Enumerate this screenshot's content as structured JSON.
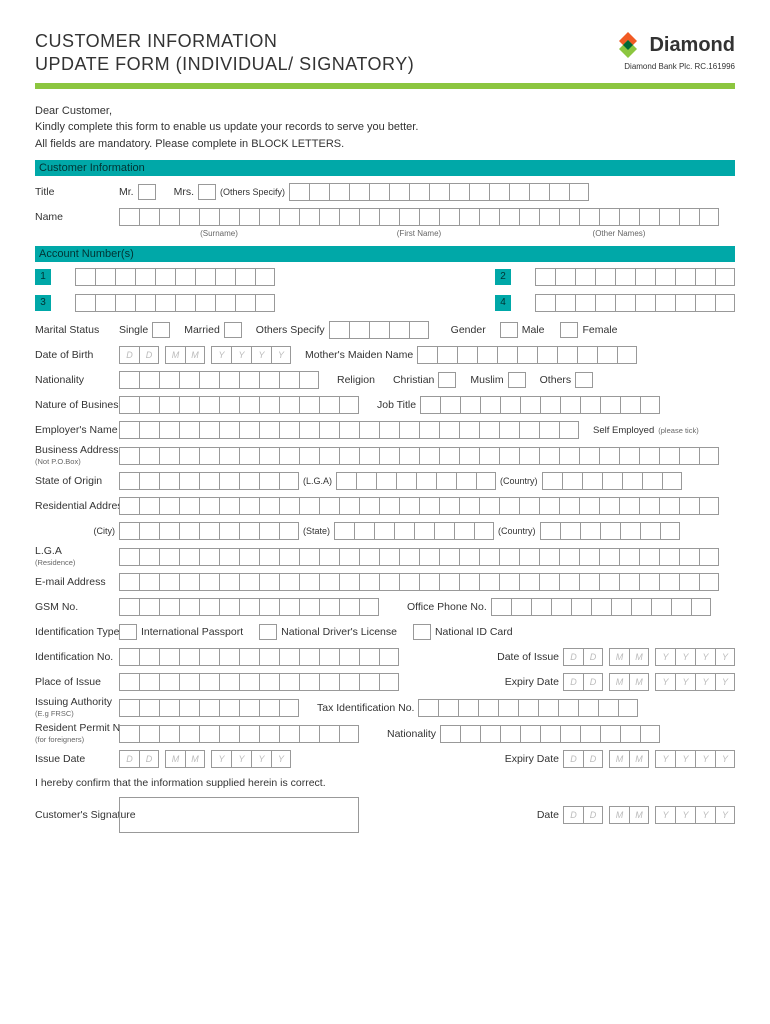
{
  "brand": {
    "name": "Diamond",
    "subtitle": "Diamond Bank Plc. RC.161996",
    "green": "#8cc63f",
    "teal": "#00a8a8",
    "orange": "#f15a24",
    "darkgreen": "#006837"
  },
  "title": {
    "line1": "CUSTOMER INFORMATION",
    "line2": "UPDATE FORM (INDIVIDUAL/ SIGNATORY)"
  },
  "intro": {
    "line1": "Dear Customer,",
    "line2": "Kindly complete this form to enable us update your records to serve you better.",
    "line3": "All fields are mandatory. Please complete in BLOCK LETTERS."
  },
  "sections": {
    "customer": "Customer Information",
    "accounts": "Account Number(s)"
  },
  "labels": {
    "title": "Title",
    "mr": "Mr.",
    "mrs": "Mrs.",
    "othersSpecify": "(Others Specify)",
    "name": "Name",
    "surname": "(Surname)",
    "firstName": "(First Name)",
    "otherNames": "(Other Names)",
    "maritalStatus": "Marital Status",
    "single": "Single",
    "married": "Married",
    "others": "Others Specify",
    "gender": "Gender",
    "male": "Male",
    "female": "Female",
    "dob": "Date of Birth",
    "motherMaiden": "Mother's Maiden Name",
    "nationality": "Nationality",
    "religion": "Religion",
    "christian": "Christian",
    "muslim": "Muslim",
    "othersR": "Others",
    "natureBusiness": "Nature of Business",
    "jobTitle": "Job Title",
    "employerName": "Employer's Name",
    "selfEmployed": "Self Employed",
    "pleaseTick": "(please tick)",
    "businessAddress": "Business Address",
    "notPOBox": "(Not P.O.Box)",
    "stateOrigin": "State of Origin",
    "lga": "(L.G.A)",
    "country": "(Country)",
    "residentialAddress": "Residential Address",
    "city": "(City)",
    "state": "(State)",
    "lgaRes": "L.G.A",
    "residence": "(Residence)",
    "email": "E-mail Address",
    "gsm": "GSM No.",
    "officePhone": "Office Phone No.",
    "idType": "Identification Type",
    "intlPassport": "International Passport",
    "ndl": "National Driver's License",
    "nid": "National ID Card",
    "idNo": "Identification No.",
    "dateOfIssue": "Date of Issue",
    "placeOfIssue": "Place of Issue",
    "expiryDate": "Expiry Date",
    "issuingAuth": "Issuing Authority",
    "egFrsc": "(E.g FRSC)",
    "tin": "Tax Identification No.",
    "residentPermit": "Resident Permit No.",
    "forForeigners": "(for foreigners)",
    "issueDate": "Issue Date",
    "confirm": "I hereby confirm that the information supplied herein is correct.",
    "signature": "Customer's Signature",
    "date": "Date"
  },
  "placeholders": {
    "d": "D",
    "m": "M",
    "y": "Y"
  },
  "accountBadges": [
    "1",
    "2",
    "3",
    "4"
  ]
}
